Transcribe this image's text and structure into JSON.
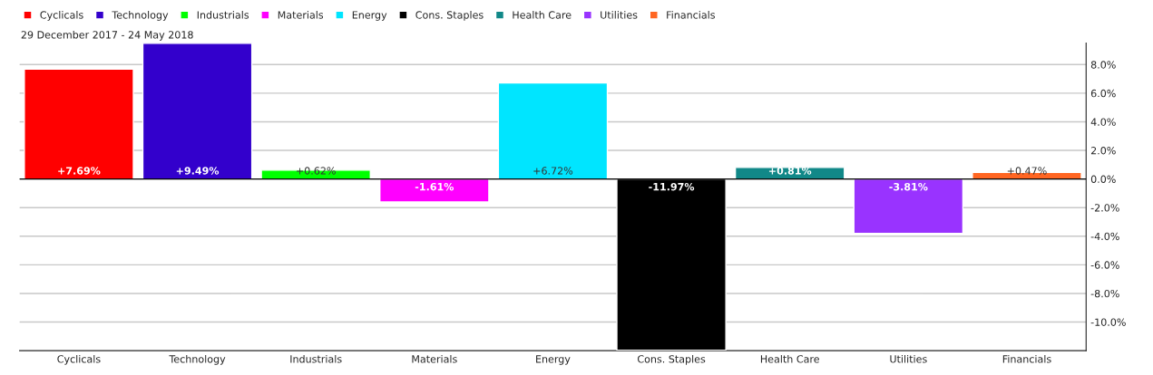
{
  "chart_data": {
    "type": "bar",
    "subtitle": "29 December 2017 - 24 May 2018",
    "categories": [
      "Cyclicals",
      "Technology",
      "Industrials",
      "Materials",
      "Energy",
      "Cons. Staples",
      "Health Care",
      "Utilities",
      "Financials"
    ],
    "series": [
      {
        "name": "Cyclicals",
        "color": "#ff0000",
        "values": [
          7.69,
          null,
          null,
          null,
          null,
          null,
          null,
          null,
          null
        ],
        "value_labels": [
          "+7.69%",
          null,
          null,
          null,
          null,
          null,
          null,
          null,
          null
        ]
      },
      {
        "name": "Technology",
        "color": "#3300cc",
        "values": [
          null,
          9.49,
          null,
          null,
          null,
          null,
          null,
          null,
          null
        ],
        "value_labels": [
          null,
          "+9.49%",
          null,
          null,
          null,
          null,
          null,
          null,
          null
        ]
      },
      {
        "name": "Industrials",
        "color": "#00ff00",
        "values": [
          null,
          null,
          0.62,
          null,
          null,
          null,
          null,
          null,
          null
        ],
        "value_labels": [
          null,
          null,
          "+0.62%",
          null,
          null,
          null,
          null,
          null,
          null
        ]
      },
      {
        "name": "Materials",
        "color": "#ff00ff",
        "values": [
          null,
          null,
          null,
          -1.61,
          null,
          null,
          null,
          null,
          null
        ],
        "value_labels": [
          null,
          null,
          null,
          "-1.61%",
          null,
          null,
          null,
          null,
          null
        ]
      },
      {
        "name": "Energy",
        "color": "#00e5ff",
        "values": [
          null,
          null,
          null,
          null,
          6.72,
          null,
          null,
          null,
          null
        ],
        "value_labels": [
          null,
          null,
          null,
          null,
          "+6.72%",
          null,
          null,
          null,
          null
        ]
      },
      {
        "name": "Cons. Staples",
        "color": "#000000",
        "values": [
          null,
          null,
          null,
          null,
          null,
          -11.97,
          null,
          null,
          null
        ],
        "value_labels": [
          null,
          null,
          null,
          null,
          null,
          "-11.97%",
          null,
          null,
          null
        ]
      },
      {
        "name": "Health Care",
        "color": "#118888",
        "values": [
          null,
          null,
          null,
          null,
          null,
          null,
          0.81,
          null,
          null
        ],
        "value_labels": [
          null,
          null,
          null,
          null,
          null,
          null,
          "+0.81%",
          null,
          null
        ]
      },
      {
        "name": "Utilities",
        "color": "#9933ff",
        "values": [
          null,
          null,
          null,
          null,
          null,
          null,
          null,
          -3.81,
          null
        ],
        "value_labels": [
          null,
          null,
          null,
          null,
          null,
          null,
          null,
          "-3.81%",
          null
        ]
      },
      {
        "name": "Financials",
        "color": "#ff6622",
        "values": [
          null,
          null,
          null,
          null,
          null,
          null,
          null,
          null,
          0.47
        ],
        "value_labels": [
          null,
          null,
          null,
          null,
          null,
          null,
          null,
          null,
          "+0.47%"
        ]
      }
    ],
    "ylim": [
      -12,
      9.5
    ],
    "yticks": [
      {
        "value": -10,
        "label": "-10.0%"
      },
      {
        "value": -8,
        "label": "-8.0%"
      },
      {
        "value": -6,
        "label": "-6.0%"
      },
      {
        "value": -4,
        "label": "-4.0%"
      },
      {
        "value": -2,
        "label": "-2.0%"
      },
      {
        "value": 0,
        "label": "0.0%"
      },
      {
        "value": 2,
        "label": "2.0%"
      },
      {
        "value": 4,
        "label": "4.0%"
      },
      {
        "value": 6,
        "label": "6.0%"
      },
      {
        "value": 8,
        "label": "8.0%"
      }
    ],
    "grid": "y",
    "legend": "top left"
  }
}
